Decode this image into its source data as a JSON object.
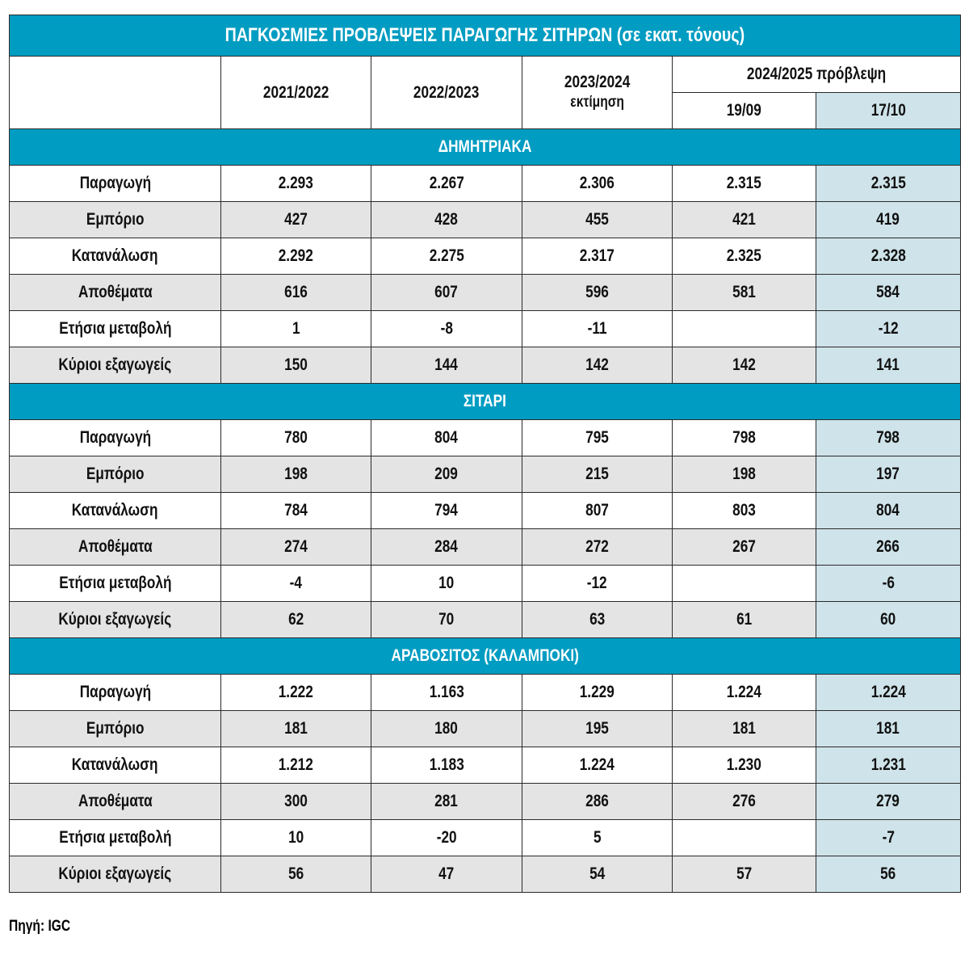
{
  "title": "ΠΑΓΚΟΣΜΙΕΣ ΠΡΟΒΛΕΨΕΙΣ ΠΑΡΑΓΩΓΗΣ ΣΙΤΗΡΩΝ (σε εκατ. τόνους)",
  "headers": {
    "years": [
      "2021/2022",
      "2022/2023"
    ],
    "estimate_year": "2023/2024",
    "estimate_label": "εκτίμηση",
    "forecast": "2024/2025 πρόβλεψη",
    "forecast_dates": [
      "19/09",
      "17/10"
    ]
  },
  "row_labels": [
    "Παραγωγή",
    "Εμπόριο",
    "Κατανάλωση",
    "Αποθέματα",
    "Ετήσια μεταβολή",
    "Κύριοι εξαγωγείς"
  ],
  "sections": [
    {
      "name": "ΔΗΜΗΤΡΙΑΚΑ",
      "rows": [
        [
          "2.293",
          "2.267",
          "2.306",
          "2.315",
          "2.315"
        ],
        [
          "427",
          "428",
          "455",
          "421",
          "419"
        ],
        [
          "2.292",
          "2.275",
          "2.317",
          "2.325",
          "2.328"
        ],
        [
          "616",
          "607",
          "596",
          "581",
          "584"
        ],
        [
          "1",
          "-8",
          "-11",
          "",
          "-12"
        ],
        [
          "150",
          "144",
          "142",
          "142",
          "141"
        ]
      ]
    },
    {
      "name": "ΣΙΤΑΡΙ",
      "rows": [
        [
          "780",
          "804",
          "795",
          "798",
          "798"
        ],
        [
          "198",
          "209",
          "215",
          "198",
          "197"
        ],
        [
          "784",
          "794",
          "807",
          "803",
          "804"
        ],
        [
          "274",
          "284",
          "272",
          "267",
          "266"
        ],
        [
          "-4",
          "10",
          "-12",
          "",
          "-6"
        ],
        [
          "62",
          "70",
          "63",
          "61",
          "60"
        ]
      ]
    },
    {
      "name": "ΑΡΑΒΟΣΙΤΟΣ (ΚΑΛΑΜΠΟΚΙ)",
      "rows": [
        [
          "1.222",
          "1.163",
          "1.229",
          "1.224",
          "1.224"
        ],
        [
          "181",
          "180",
          "195",
          "181",
          "181"
        ],
        [
          "1.212",
          "1.183",
          "1.224",
          "1.230",
          "1.231"
        ],
        [
          "300",
          "281",
          "286",
          "276",
          "279"
        ],
        [
          "10",
          "-20",
          "5",
          "",
          "-7"
        ],
        [
          "56",
          "47",
          "54",
          "57",
          "56"
        ]
      ]
    }
  ],
  "source": "Πηγή: IGC",
  "colors": {
    "header_blue": "#009cc2",
    "row_grey": "#e4e4e4",
    "highlight": "#cfe4ea"
  }
}
